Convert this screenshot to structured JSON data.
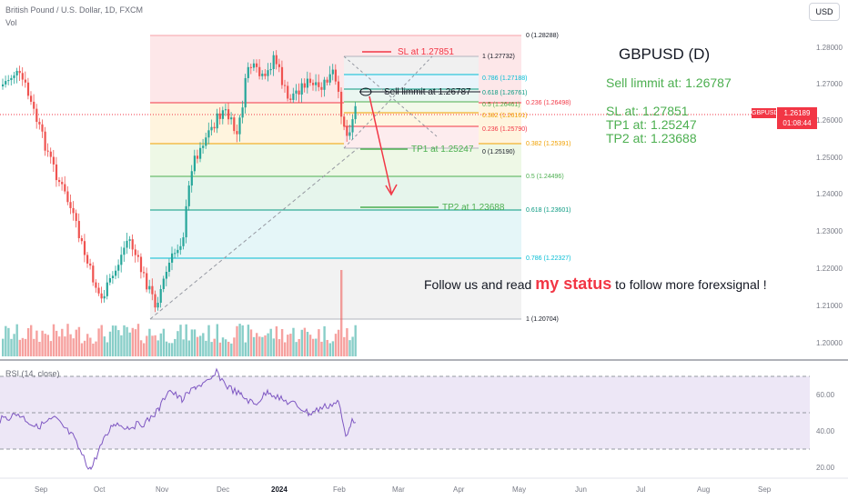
{
  "header": {
    "title": "British Pound / U.S. Dollar, 1D, FXCM",
    "volume_label": "Vol",
    "currency_button": "USD"
  },
  "price_axis": {
    "labels": [
      "1.28000",
      "1.27000",
      "1.26000",
      "1.25000",
      "1.24000",
      "1.23000",
      "1.22000",
      "1.21000",
      "1.20000"
    ],
    "current_price": "1.26189",
    "countdown": "01:08:44",
    "symbol": "GBPUSD"
  },
  "rsi": {
    "label": "RSI (14, close)",
    "axis_labels": [
      "60.00",
      "40.00",
      "20.00"
    ]
  },
  "time_axis": {
    "labels": [
      "Sep",
      "Oct",
      "Nov",
      "Dec",
      "2024",
      "Feb",
      "Mar",
      "Apr",
      "May",
      "Jun",
      "Jul",
      "Aug",
      "Sep"
    ]
  },
  "fib": {
    "levels": [
      {
        "level": "0",
        "price": "1.28288"
      },
      {
        "level": "0.236",
        "price": "1.26498"
      },
      {
        "level": "0.382",
        "price": "1.25391"
      },
      {
        "level": "0.5",
        "price": "1.24496"
      },
      {
        "level": "0.618",
        "price": "1.23601"
      },
      {
        "level": "0.786",
        "price": "1.22327"
      },
      {
        "level": "1",
        "price": "1.20704"
      }
    ],
    "small_levels": [
      {
        "level": "1",
        "price": "1.27732"
      },
      {
        "level": "0.786",
        "price": "1.27188"
      },
      {
        "level": "0.618",
        "price": "1.26761"
      },
      {
        "level": "0.5",
        "price": "1.26461"
      },
      {
        "level": "0.382",
        "price": "1.26161"
      },
      {
        "level": "0.236",
        "price": "1.25790"
      },
      {
        "level": "0",
        "price": "1.25190"
      }
    ]
  },
  "chart_labels": {
    "sl": "SL at 1.27851",
    "sell": "Sell limmit at 1.26787",
    "tp1": "TP1 at 1.25247",
    "tp2": "TP2 at 1.23688"
  },
  "notes": {
    "title": "GBPUSD (D)",
    "sell": "Sell limmit at: 1.26787",
    "sl": "SL at: 1.27851",
    "tp1": "TP1 at: 1.25247",
    "tp2": "TP2 at: 1.23688"
  },
  "follow": {
    "before": "Follow us and read",
    "highlight": "my status",
    "after": " to follow more forexsignal !"
  },
  "colors": {
    "up": "#26a69a",
    "down": "#ef5350",
    "rsi_line": "#7e57c2",
    "note_green": "#4caf50",
    "accent_red": "#f23645"
  }
}
